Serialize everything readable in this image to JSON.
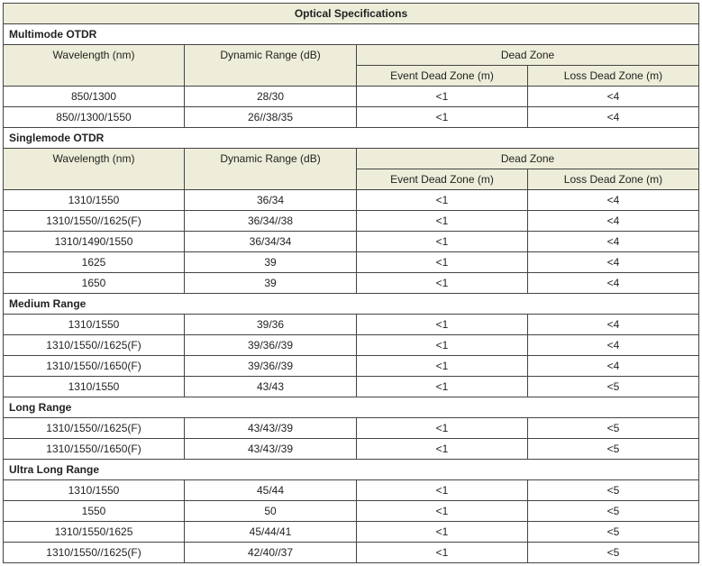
{
  "title": "Optical Specifications",
  "sections": [
    {
      "name": "Multimode OTDR",
      "header": {
        "wavelength": "Wavelength (nm)",
        "dynamic_range": "Dynamic Range (dB)",
        "dead_zone": "Dead Zone",
        "event_dead_zone": "Event Dead Zone (m)",
        "loss_dead_zone": "Loss Dead Zone (m)"
      },
      "rows": [
        [
          "850/1300",
          "28/30",
          "<1",
          "<4"
        ],
        [
          "850//1300/1550",
          "26//38/35",
          "<1",
          "<4"
        ]
      ]
    },
    {
      "name": "Singlemode OTDR",
      "header": {
        "wavelength": "Wavelength (nm)",
        "dynamic_range": "Dynamic Range (dB)",
        "dead_zone": "Dead Zone",
        "event_dead_zone": "Event Dead Zone (m)",
        "loss_dead_zone": "Loss Dead Zone (m)"
      },
      "rows": [
        [
          "1310/1550",
          "36/34",
          "<1",
          "<4"
        ],
        [
          "1310/1550//1625(F)",
          "36/34//38",
          "<1",
          "<4"
        ],
        [
          "1310/1490/1550",
          "36/34/34",
          "<1",
          "<4"
        ],
        [
          "1625",
          "39",
          "<1",
          "<4"
        ],
        [
          "1650",
          "39",
          "<1",
          "<4"
        ]
      ]
    },
    {
      "name": "Medium Range",
      "rows": [
        [
          "1310/1550",
          "39/36",
          "<1",
          "<4"
        ],
        [
          "1310/1550//1625(F)",
          "39/36//39",
          "<1",
          "<4"
        ],
        [
          "1310/1550//1650(F)",
          "39/36//39",
          "<1",
          "<4"
        ],
        [
          "1310/1550",
          "43/43",
          "<1",
          "<5"
        ]
      ]
    },
    {
      "name": "Long Range",
      "rows": [
        [
          "1310/1550//1625(F)",
          "43/43//39",
          "<1",
          "<5"
        ],
        [
          "1310/1550//1650(F)",
          "43/43//39",
          "<1",
          "<5"
        ]
      ]
    },
    {
      "name": "Ultra Long Range",
      "rows": [
        [
          "1310/1550",
          "45/44",
          "<1",
          "<5"
        ],
        [
          "1550",
          "50",
          "<1",
          "<5"
        ],
        [
          "1310/1550/1625",
          "45/44/41",
          "<1",
          "<5"
        ],
        [
          "1310/1550//1625(F)",
          "42/40//37",
          "<1",
          "<5"
        ]
      ]
    }
  ]
}
